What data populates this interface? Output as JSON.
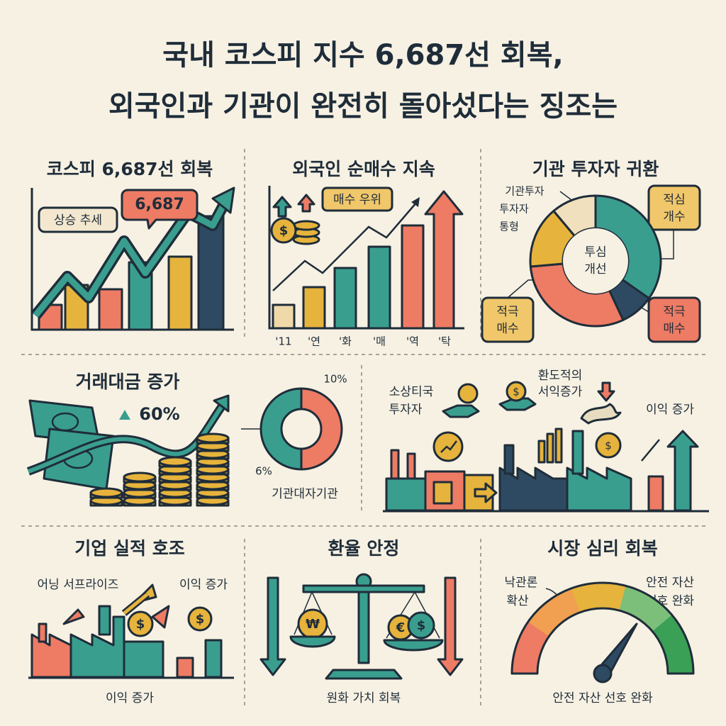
{
  "title": [
    "국내 코스피 지수 6,687선 회복,",
    "외국인과 기관이 완전히 돌아섰다는 징조는"
  ],
  "panels": [
    {
      "title": "코스피 6,687선 회복",
      "labels": [
        "상승 추세",
        "6,687"
      ]
    },
    {
      "title": "외국인 순매수 지속",
      "labels": [
        "매수 우위"
      ],
      "x_labels": [
        "'11",
        "'연",
        "'화",
        "'매",
        "'역",
        "'탁"
      ]
    },
    {
      "title": "기관 투자자 귀환",
      "labels": [
        [
          "기관투자",
          "투자자",
          "통형"
        ],
        [
          "적심",
          "개수"
        ],
        [
          "투심",
          "개선"
        ],
        [
          "적극",
          "매수"
        ],
        [
          "적극",
          "매수"
        ]
      ]
    },
    {
      "title": "거래대금 증가",
      "labels": [
        "60%",
        "10%",
        "6%",
        "기관대자기관"
      ]
    },
    {
      "labels": [
        [
          "소상티국",
          "투자자"
        ],
        [
          "환도적의",
          "서익증가"
        ],
        "이익 증가"
      ]
    },
    {
      "title": "기업 실적 호조",
      "labels": [
        "어닝 서프라이즈",
        "이익 증가",
        "이익 증가"
      ]
    },
    {
      "title": "환율 안정",
      "labels": [
        "원화 가치 회복"
      ]
    },
    {
      "title": "시장 심리 회복",
      "labels": [
        [
          "낙관론",
          "확산"
        ],
        [
          "안전 자산",
          "선호 완화"
        ],
        "안전 자산 선호 완화"
      ]
    }
  ],
  "symbols": {
    "dollar": "$",
    "won": "₩",
    "euro": "€"
  }
}
